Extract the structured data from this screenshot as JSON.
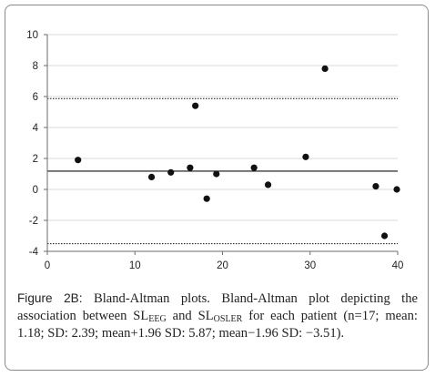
{
  "chart_data": {
    "type": "scatter",
    "title": "",
    "xlabel": "",
    "ylabel": "",
    "xlim": [
      0,
      40
    ],
    "ylim": [
      -4,
      10
    ],
    "x_ticks": [
      "0",
      "10",
      "20",
      "30",
      "40"
    ],
    "y_ticks": [
      "10",
      "8",
      "6",
      "4",
      "2",
      "0",
      "-2",
      "-4"
    ],
    "x_tick_values": [
      0,
      10,
      20,
      30,
      40
    ],
    "y_tick_values": [
      10,
      8,
      6,
      4,
      2,
      0,
      -2,
      -4
    ],
    "grid": "horizontal",
    "series": [
      {
        "points": [
          {
            "x": 3.5,
            "y": 1.9
          },
          {
            "x": 11.9,
            "y": 0.8
          },
          {
            "x": 14.1,
            "y": 1.1
          },
          {
            "x": 16.3,
            "y": 1.4
          },
          {
            "x": 16.9,
            "y": 5.4
          },
          {
            "x": 18.2,
            "y": -0.6
          },
          {
            "x": 19.3,
            "y": 1.0
          },
          {
            "x": 23.6,
            "y": 1.4
          },
          {
            "x": 25.2,
            "y": 0.3
          },
          {
            "x": 29.5,
            "y": 2.1
          },
          {
            "x": 31.7,
            "y": 7.8
          },
          {
            "x": 37.5,
            "y": 0.2
          },
          {
            "x": 38.5,
            "y": -3.0
          },
          {
            "x": 39.9,
            "y": 0.0
          }
        ]
      }
    ],
    "reference_lines": [
      {
        "label": "mean",
        "y": 1.18,
        "style": "solid"
      },
      {
        "label": "mean+1.96 SD",
        "y": 5.87,
        "style": "dotted"
      },
      {
        "label": "mean−1.96 SD",
        "y": -3.51,
        "style": "dotted"
      }
    ]
  },
  "caption": {
    "label": "Figure 2B:",
    "t1": " Bland-Altman plots. Bland-Altman plot depicting the association between SL",
    "s1": "EEG",
    "t2": " and SL",
    "s2": "OSLER",
    "t3": " for each patient (n=17; mean: 1.18; SD: 2.39; mean+1.96 SD: 5.87; mean−1.96 SD: −3.51)."
  }
}
